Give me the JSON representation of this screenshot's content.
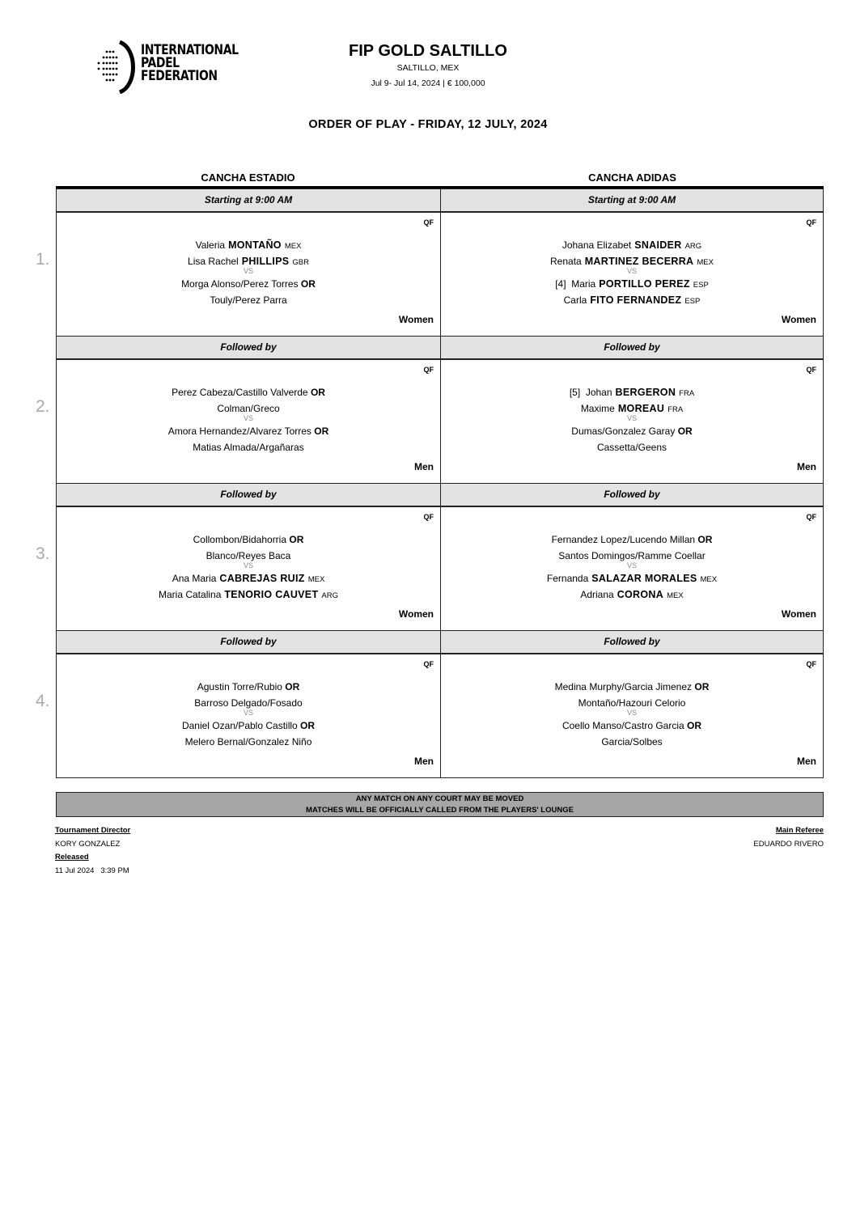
{
  "logo": {
    "text": [
      "INTERNATIONAL",
      "PADEL",
      "FEDERATION"
    ]
  },
  "header": {
    "title": "FIP GOLD SALTILLO",
    "location": "SALTILLO, MEX",
    "dates_prize": "Jul 9- Jul 14, 2024  |  € 100,000",
    "order_of_play": "ORDER OF PLAY - FRIDAY, 12 JULY, 2024"
  },
  "courts": [
    "CANCHA ESTADIO",
    "CANCHA ADIDAS"
  ],
  "slot_numbers": [
    "1.",
    "2.",
    "3.",
    "4."
  ],
  "slots": [
    {
      "label": [
        "Starting at 9:00 AM",
        "Starting at 9:00 AM"
      ],
      "matches": [
        {
          "round": "QF",
          "category": "Women",
          "vs": "VS",
          "lines": [
            {
              "first": "Valeria",
              "last": "MONTAÑO",
              "country": "MEX"
            },
            {
              "first": "Lisa Rachel",
              "last": "PHILLIPS",
              "country": "GBR"
            },
            {
              "text": "Morga Alonso/Perez Torres",
              "or": "OR"
            },
            {
              "text": "Touly/Perez Parra"
            }
          ]
        },
        {
          "round": "QF",
          "category": "Women",
          "vs": "VS",
          "lines": [
            {
              "first": "Johana Elizabet",
              "last": "SNAIDER",
              "country": "ARG"
            },
            {
              "first": "Renata",
              "last": "MARTINEZ BECERRA",
              "country": "MEX"
            },
            {
              "seed": "[4]",
              "first": "Maria",
              "last": "PORTILLO PEREZ",
              "country": "ESP"
            },
            {
              "first": "Carla",
              "last": "FITO FERNANDEZ",
              "country": "ESP"
            }
          ]
        }
      ]
    },
    {
      "label": [
        "Followed by",
        "Followed by"
      ],
      "matches": [
        {
          "round": "QF",
          "category": "Men",
          "vs": "VS",
          "lines": [
            {
              "text": "Perez Cabeza/Castillo Valverde",
              "or": "OR"
            },
            {
              "text": "Colman/Greco"
            },
            {
              "text": "Amora Hernandez/Alvarez Torres",
              "or": "OR"
            },
            {
              "text": "Matias Almada/Argañaras"
            }
          ]
        },
        {
          "round": "QF",
          "category": "Men",
          "vs": "VS",
          "lines": [
            {
              "seed": "[5]",
              "first": "Johan",
              "last": "BERGERON",
              "country": "FRA"
            },
            {
              "first": "Maxime",
              "last": "MOREAU",
              "country": "FRA"
            },
            {
              "text": "Dumas/Gonzalez Garay",
              "or": "OR"
            },
            {
              "text": "Cassetta/Geens"
            }
          ]
        }
      ]
    },
    {
      "label": [
        "Followed by",
        "Followed by"
      ],
      "matches": [
        {
          "round": "QF",
          "category": "Women",
          "vs": "VS",
          "lines": [
            {
              "text": "Collombon/Bidahorria",
              "or": "OR"
            },
            {
              "text": "Blanco/Reyes Baca"
            },
            {
              "first": "Ana Maria",
              "last": "CABREJAS RUIZ",
              "country": "MEX"
            },
            {
              "first": "Maria Catalina",
              "last": "TENORIO CAUVET",
              "country": "ARG"
            }
          ]
        },
        {
          "round": "QF",
          "category": "Women",
          "vs": "VS",
          "lines": [
            {
              "text": "Fernandez Lopez/Lucendo Millan",
              "or": "OR"
            },
            {
              "text": "Santos Domingos/Ramme Coellar"
            },
            {
              "first": "Fernanda",
              "last": "SALAZAR MORALES",
              "country": "MEX"
            },
            {
              "first": "Adriana",
              "last": "CORONA",
              "country": "MEX"
            }
          ]
        }
      ]
    },
    {
      "label": [
        "Followed by",
        "Followed by"
      ],
      "matches": [
        {
          "round": "QF",
          "category": "Men",
          "vs": "VS",
          "lines": [
            {
              "text": "Agustin Torre/Rubio",
              "or": "OR"
            },
            {
              "text": "Barroso Delgado/Fosado"
            },
            {
              "text": "Daniel Ozan/Pablo Castillo",
              "or": "OR"
            },
            {
              "text": "Melero Bernal/Gonzalez Niño"
            }
          ]
        },
        {
          "round": "QF",
          "category": "Men",
          "vs": "VS",
          "lines": [
            {
              "text": "Medina Murphy/Garcia Jimenez",
              "or": "OR"
            },
            {
              "text": "Montaño/Hazouri Celorio"
            },
            {
              "text": "Coello Manso/Castro Garcia",
              "or": "OR"
            },
            {
              "text": "Garcia/Solbes"
            }
          ]
        }
      ]
    }
  ],
  "notice": [
    "ANY MATCH ON ANY COURT MAY BE MOVED",
    "MATCHES WILL BE OFFICIALLY CALLED FROM THE PLAYERS' LOUNGE"
  ],
  "footer": {
    "director_label": "Tournament Director",
    "director_name": "KORY GONZALEZ",
    "released_label": "Released",
    "released_time": "11 Jul 2024   3:39 PM",
    "referee_label": "Main Referee",
    "referee_name": "EDUARDO RIVERO"
  }
}
